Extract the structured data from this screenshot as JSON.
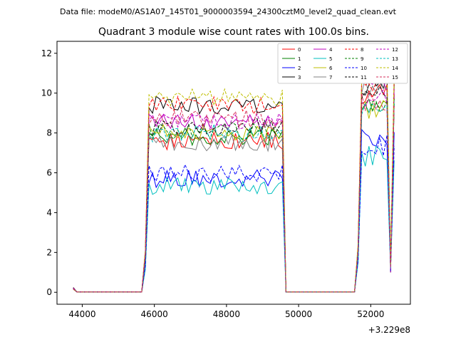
{
  "chart_data": {
    "type": "line",
    "suptitle": "Data file: modeM0/AS1A07_145T01_9000003594_24300cztM0_level2_quad_clean.evt",
    "title": "Quadrant 3 module wise count rates with 100.0s bins.",
    "xlabel": "",
    "ylabel": "",
    "x_offset_label": "+3.229e8",
    "xlim": [
      43300,
      53100
    ],
    "ylim": [
      -0.6,
      12.6
    ],
    "xticks": [
      44000,
      46000,
      48000,
      50000,
      52000
    ],
    "xtick_labels": [
      "44000",
      "46000",
      "48000",
      "50000",
      "52000"
    ],
    "yticks": [
      0,
      2,
      4,
      6,
      8,
      10,
      12
    ],
    "ytick_labels": [
      "0",
      "2",
      "4",
      "6",
      "8",
      "10",
      "12"
    ],
    "grid": false,
    "legend_position": "top-right",
    "segments": [
      {
        "x_start": 43750,
        "x_end": 45750,
        "level": "baseline"
      },
      {
        "x_start": 45750,
        "x_end": 49650,
        "level": "plateau"
      },
      {
        "x_start": 49650,
        "x_end": 51650,
        "level": "baseline"
      },
      {
        "x_start": 51650,
        "x_end": 52650,
        "level": "plateau"
      }
    ],
    "series": [
      {
        "name": "0",
        "color": "#ff0000",
        "dash": false,
        "mean_1": 7.6,
        "mean_2": 10.0
      },
      {
        "name": "1",
        "color": "#008000",
        "dash": false,
        "mean_1": 7.8,
        "mean_2": 9.6
      },
      {
        "name": "2",
        "color": "#0000ff",
        "dash": false,
        "mean_1": 5.7,
        "mean_2": 7.7
      },
      {
        "name": "3",
        "color": "#000000",
        "dash": false,
        "mean_1": 9.4,
        "mean_2": 10.4
      },
      {
        "name": "4",
        "color": "#bf00bf",
        "dash": false,
        "mean_1": 8.5,
        "mean_2": 10.3
      },
      {
        "name": "5",
        "color": "#00bfbf",
        "dash": false,
        "mean_1": 5.3,
        "mean_2": 6.8
      },
      {
        "name": "6",
        "color": "#bfbf00",
        "dash": false,
        "mean_1": 8.0,
        "mean_2": 9.2
      },
      {
        "name": "7",
        "color": "#808080",
        "dash": false,
        "mean_1": 7.5,
        "mean_2": 10.3
      },
      {
        "name": "8",
        "color": "#ff0000",
        "dash": true,
        "mean_1": 9.4,
        "mean_2": 10.6
      },
      {
        "name": "9",
        "color": "#008000",
        "dash": true,
        "mean_1": 8.1,
        "mean_2": 9.4
      },
      {
        "name": "10",
        "color": "#0000ff",
        "dash": true,
        "mean_1": 6.0,
        "mean_2": 7.4
      },
      {
        "name": "11",
        "color": "#000000",
        "dash": true,
        "mean_1": 8.3,
        "mean_2": 9.9
      },
      {
        "name": "12",
        "color": "#bf00bf",
        "dash": true,
        "mean_1": 8.6,
        "mean_2": 9.8
      },
      {
        "name": "13",
        "color": "#00bfbf",
        "dash": true,
        "mean_1": 8.0,
        "mean_2": 9.3
      },
      {
        "name": "14",
        "color": "#bfbf00",
        "dash": true,
        "mean_1": 9.8,
        "mean_2": 11.2
      },
      {
        "name": "15",
        "color": "#d62d5a",
        "dash": true,
        "mean_1": 8.7,
        "mean_2": 9.5
      }
    ]
  }
}
